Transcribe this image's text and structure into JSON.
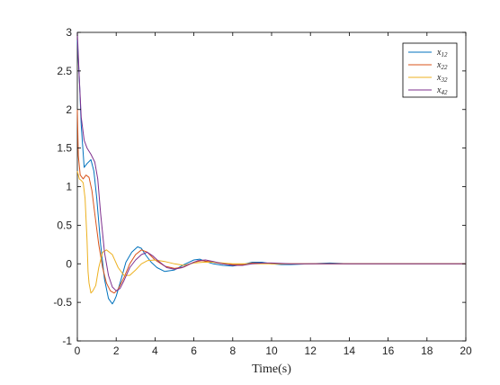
{
  "chart_data": {
    "type": "line",
    "title": "",
    "xlabel": "Time(s)",
    "ylabel": "",
    "xlim": [
      0,
      20
    ],
    "ylim": [
      -1,
      3
    ],
    "xticks": [
      0,
      2,
      4,
      6,
      8,
      10,
      12,
      14,
      16,
      18,
      20
    ],
    "yticks": [
      -1,
      -0.5,
      0,
      0.5,
      1,
      1.5,
      2,
      2.5,
      3
    ],
    "xtick_labels": [
      "0",
      "2",
      "4",
      "6",
      "8",
      "10",
      "12",
      "14",
      "16",
      "18",
      "20"
    ],
    "ytick_labels": [
      "-1",
      "-0.5",
      "0",
      "0.5",
      "1",
      "1.5",
      "2",
      "2.5",
      "3"
    ],
    "grid": false,
    "legend_position": "top-right",
    "series": [
      {
        "name": "x12",
        "color": "#0072bd",
        "x": [
          0,
          0.1,
          0.2,
          0.35,
          0.5,
          0.7,
          0.85,
          1.0,
          1.2,
          1.4,
          1.6,
          1.8,
          1.9,
          2.0,
          2.2,
          2.5,
          2.8,
          3.1,
          3.3,
          3.5,
          3.8,
          4.1,
          4.5,
          5.0,
          5.5,
          6.0,
          6.3,
          6.6,
          7.0,
          7.5,
          8.0,
          8.5,
          9.0,
          9.5,
          10.0,
          10.5,
          11.0,
          12.0,
          13.0,
          14.0,
          16.0,
          18.0,
          20.0
        ],
        "y": [
          2.9,
          2.4,
          1.8,
          1.25,
          1.3,
          1.35,
          1.2,
          0.85,
          0.25,
          -0.2,
          -0.45,
          -0.52,
          -0.48,
          -0.42,
          -0.25,
          0.02,
          0.15,
          0.22,
          0.2,
          0.12,
          0.02,
          -0.05,
          -0.1,
          -0.08,
          -0.01,
          0.05,
          0.06,
          0.03,
          0.0,
          -0.02,
          -0.03,
          -0.01,
          0.02,
          0.02,
          0.0,
          -0.01,
          -0.01,
          0.0,
          0.01,
          0.0,
          0.0,
          0.0,
          0.0
        ]
      },
      {
        "name": "x22",
        "color": "#d95319",
        "x": [
          0,
          0.05,
          0.15,
          0.3,
          0.45,
          0.6,
          0.75,
          0.9,
          1.1,
          1.3,
          1.5,
          1.7,
          1.9,
          2.1,
          2.4,
          2.7,
          3.0,
          3.3,
          3.6,
          4.0,
          4.5,
          5.0,
          5.5,
          6.0,
          6.4,
          7.0,
          7.5,
          8.0,
          8.5,
          9.0,
          9.5,
          10.0,
          11.0,
          12.0,
          13.0,
          14.0,
          16.0,
          18.0,
          20.0
        ],
        "y": [
          2.0,
          1.4,
          1.15,
          1.1,
          1.15,
          1.12,
          0.95,
          0.65,
          0.25,
          -0.05,
          -0.25,
          -0.35,
          -0.38,
          -0.33,
          -0.18,
          0.0,
          0.12,
          0.18,
          0.15,
          0.05,
          -0.03,
          -0.06,
          -0.04,
          0.02,
          0.04,
          0.02,
          0.0,
          -0.01,
          -0.01,
          0.01,
          0.01,
          0.0,
          0.0,
          0.0,
          0.0,
          0.0,
          0.0,
          0.0,
          0.0
        ]
      },
      {
        "name": "x32",
        "color": "#edb120",
        "x": [
          0,
          0.1,
          0.2,
          0.3,
          0.4,
          0.5,
          0.55,
          0.6,
          0.7,
          0.8,
          0.95,
          1.1,
          1.3,
          1.5,
          1.8,
          2.1,
          2.4,
          2.7,
          3.0,
          3.3,
          3.6,
          4.0,
          4.5,
          5.0,
          5.5,
          6.0,
          6.5,
          7.0,
          7.5,
          8.0,
          8.5,
          9.0,
          10.0,
          11.0,
          12.0,
          14.0,
          16.0,
          18.0,
          20.0
        ],
        "y": [
          1.2,
          1.1,
          1.08,
          1.05,
          0.85,
          0.3,
          -0.1,
          -0.25,
          -0.38,
          -0.35,
          -0.28,
          -0.05,
          0.15,
          0.18,
          0.12,
          -0.05,
          -0.15,
          -0.15,
          -0.08,
          0.0,
          0.04,
          0.05,
          0.03,
          0.0,
          -0.02,
          0.01,
          0.02,
          0.02,
          0.01,
          0.0,
          0.0,
          0.0,
          0.0,
          0.0,
          0.0,
          0.0,
          0.0,
          0.0,
          0.0
        ]
      },
      {
        "name": "x42",
        "color": "#7e2f8e",
        "x": [
          0,
          0.1,
          0.2,
          0.35,
          0.5,
          0.7,
          0.9,
          1.05,
          1.2,
          1.4,
          1.6,
          1.8,
          2.0,
          2.2,
          2.4,
          2.7,
          3.0,
          3.3,
          3.6,
          3.9,
          4.2,
          4.6,
          5.0,
          5.4,
          5.8,
          6.2,
          6.6,
          7.0,
          7.5,
          8.0,
          8.5,
          9.0,
          9.5,
          10.0,
          11.0,
          12.0,
          13.0,
          14.0,
          16.0,
          18.0,
          20.0
        ],
        "y": [
          3.0,
          2.4,
          1.9,
          1.6,
          1.5,
          1.42,
          1.32,
          1.1,
          0.65,
          0.15,
          -0.15,
          -0.3,
          -0.35,
          -0.32,
          -0.22,
          -0.05,
          0.05,
          0.12,
          0.15,
          0.1,
          0.03,
          -0.05,
          -0.07,
          -0.05,
          0.0,
          0.04,
          0.05,
          0.03,
          0.0,
          -0.02,
          -0.02,
          0.0,
          0.01,
          0.01,
          0.0,
          0.0,
          0.0,
          0.0,
          0.0,
          0.0,
          0.0
        ]
      }
    ],
    "legend": [
      {
        "base": "x",
        "sub": "12"
      },
      {
        "base": "x",
        "sub": "22"
      },
      {
        "base": "x",
        "sub": "32"
      },
      {
        "base": "x",
        "sub": "42"
      }
    ]
  }
}
